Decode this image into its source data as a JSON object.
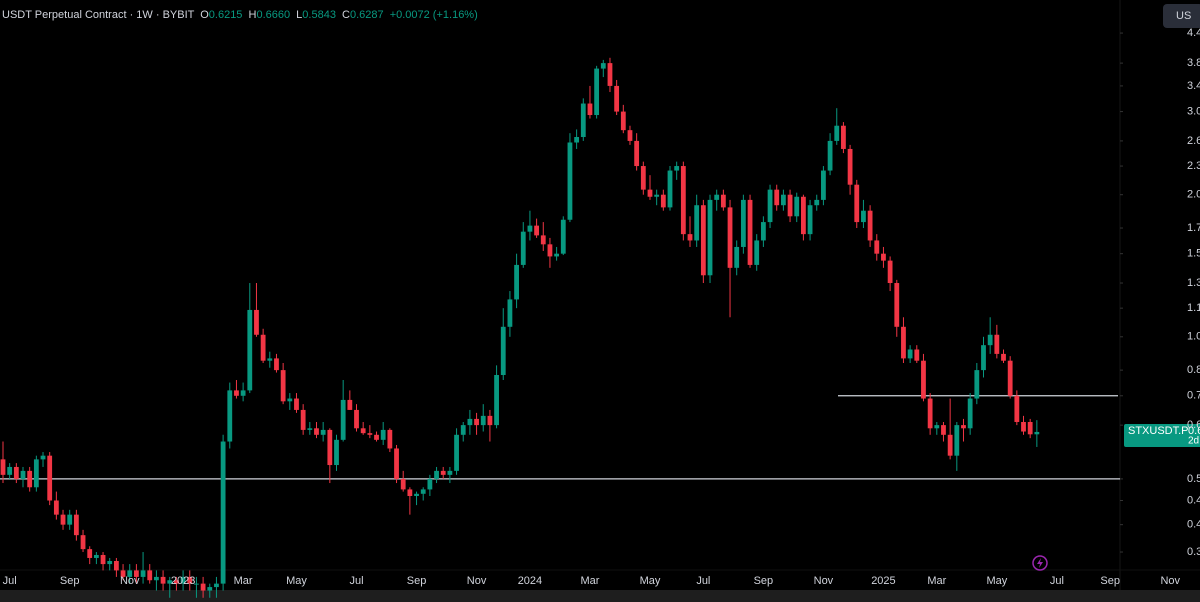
{
  "header": {
    "title": "USDT Perpetual Contract · 1W · BYBIT",
    "o_label": "O",
    "open": "0.6215",
    "h_label": "H",
    "high": "0.6660",
    "l_label": "L",
    "low": "0.5843",
    "c_label": "C",
    "close": "0.6287",
    "change": "+0.0072 (+1.16%)"
  },
  "ui": {
    "corner": "US",
    "price_tag": {
      "symbol": "STXUSDT.P",
      "price": "0.6",
      "countdown": "2d"
    }
  },
  "chart_data": {
    "type": "candlestick",
    "log_scale": true,
    "grid": false,
    "up_color": "#089981",
    "down_color": "#f23645",
    "level_color": "#d1d4dc",
    "ylim": [
      0.298,
      5.17
    ],
    "yticks": [
      4.4,
      3.8,
      3.4,
      {
        "value": 3,
        "label": "3.0"
      },
      2.6,
      2.3,
      {
        "value": 2,
        "label": "2.0"
      },
      1.7,
      1.5,
      1.3,
      {
        "value": 1.15,
        "label": "1.1"
      },
      {
        "value": 1,
        "label": "1.0"
      },
      {
        "value": 0.85,
        "label": "0.8"
      },
      {
        "value": 0.75,
        "label": "0.7"
      },
      {
        "value": 0.65,
        "label": "0.6"
      },
      0.5,
      {
        "value": 0.45,
        "label": "0.4"
      },
      0.4,
      {
        "value": 0.35,
        "label": "0.3"
      }
    ],
    "levels": [
      0.5,
      0.75
    ],
    "categories": [
      null,
      "Jul",
      null,
      null,
      null,
      null,
      null,
      null,
      null,
      null,
      "Sep",
      null,
      null,
      null,
      null,
      null,
      null,
      null,
      null,
      "Nov",
      null,
      null,
      null,
      null,
      null,
      null,
      null,
      "2023",
      null,
      null,
      null,
      null,
      null,
      null,
      null,
      null,
      "Mar",
      null,
      null,
      null,
      null,
      null,
      null,
      null,
      "May",
      null,
      null,
      null,
      null,
      null,
      null,
      null,
      null,
      "Jul",
      null,
      null,
      null,
      null,
      null,
      null,
      null,
      null,
      "Sep",
      null,
      null,
      null,
      null,
      null,
      null,
      null,
      null,
      "Nov",
      null,
      null,
      null,
      null,
      null,
      null,
      null,
      "2024",
      null,
      null,
      null,
      null,
      null,
      null,
      null,
      null,
      "Mar",
      null,
      null,
      null,
      null,
      null,
      null,
      null,
      null,
      "May",
      null,
      null,
      null,
      null,
      null,
      null,
      null,
      "Jul",
      null,
      null,
      null,
      null,
      null,
      null,
      null,
      null,
      "Sep",
      null,
      null,
      null,
      null,
      null,
      null,
      null,
      null,
      "Nov",
      null,
      null,
      null,
      null,
      null,
      null,
      null,
      null,
      "2025",
      null,
      null,
      null,
      null,
      null,
      null,
      null,
      "Mar",
      null,
      null,
      null,
      null,
      null,
      null,
      null,
      null,
      "May",
      null,
      null,
      null,
      null,
      null,
      null,
      null,
      null,
      "Jul",
      null,
      null,
      null,
      null,
      null,
      null,
      null,
      "Sep",
      null,
      null,
      null,
      null,
      null,
      null,
      null,
      null,
      "Nov"
    ],
    "ohlc": [
      [
        0.55,
        0.6,
        0.49,
        0.51
      ],
      [
        0.51,
        0.54,
        0.5,
        0.53
      ],
      [
        0.53,
        0.54,
        0.49,
        0.5
      ],
      [
        0.5,
        0.53,
        0.48,
        0.52
      ],
      [
        0.52,
        0.53,
        0.47,
        0.48
      ],
      [
        0.48,
        0.56,
        0.47,
        0.55
      ],
      [
        0.55,
        0.57,
        0.53,
        0.56
      ],
      [
        0.56,
        0.57,
        0.44,
        0.45
      ],
      [
        0.45,
        0.47,
        0.41,
        0.42
      ],
      [
        0.42,
        0.43,
        0.39,
        0.4
      ],
      [
        0.4,
        0.43,
        0.39,
        0.42
      ],
      [
        0.42,
        0.43,
        0.37,
        0.38
      ],
      [
        0.38,
        0.39,
        0.35,
        0.355
      ],
      [
        0.355,
        0.36,
        0.33,
        0.34
      ],
      [
        0.34,
        0.35,
        0.33,
        0.345
      ],
      [
        0.345,
        0.35,
        0.32,
        0.33
      ],
      [
        0.33,
        0.34,
        0.32,
        0.335
      ],
      [
        0.335,
        0.34,
        0.31,
        0.32
      ],
      [
        0.32,
        0.33,
        0.305,
        0.31
      ],
      [
        0.31,
        0.33,
        0.3,
        0.32
      ],
      [
        0.32,
        0.33,
        0.3,
        0.31
      ],
      [
        0.31,
        0.35,
        0.3,
        0.32
      ],
      [
        0.32,
        0.33,
        0.3,
        0.305
      ],
      [
        0.305,
        0.32,
        0.29,
        0.31
      ],
      [
        0.31,
        0.32,
        0.29,
        0.3
      ],
      [
        0.3,
        0.31,
        0.28,
        0.305
      ],
      [
        0.305,
        0.31,
        0.29,
        0.3
      ],
      [
        0.3,
        0.32,
        0.29,
        0.31
      ],
      [
        0.31,
        0.32,
        0.29,
        0.3
      ],
      [
        0.3,
        0.31,
        0.28,
        0.3
      ],
      [
        0.3,
        0.31,
        0.28,
        0.29
      ],
      [
        0.29,
        0.3,
        0.28,
        0.295
      ],
      [
        0.295,
        0.31,
        0.28,
        0.3
      ],
      [
        0.3,
        0.62,
        0.29,
        0.6
      ],
      [
        0.6,
        0.8,
        0.58,
        0.77
      ],
      [
        0.77,
        0.81,
        0.74,
        0.75
      ],
      [
        0.75,
        0.8,
        0.73,
        0.77
      ],
      [
        0.77,
        1.3,
        0.76,
        1.14
      ],
      [
        1.14,
        1.3,
        1.0,
        1.01
      ],
      [
        1.01,
        1.04,
        0.88,
        0.89
      ],
      [
        0.89,
        0.93,
        0.86,
        0.9
      ],
      [
        0.9,
        0.92,
        0.84,
        0.85
      ],
      [
        0.85,
        0.88,
        0.72,
        0.73
      ],
      [
        0.73,
        0.76,
        0.7,
        0.74
      ],
      [
        0.74,
        0.76,
        0.69,
        0.7
      ],
      [
        0.7,
        0.72,
        0.62,
        0.635
      ],
      [
        0.635,
        0.66,
        0.62,
        0.64
      ],
      [
        0.64,
        0.66,
        0.61,
        0.62
      ],
      [
        0.62,
        0.66,
        0.6,
        0.635
      ],
      [
        0.635,
        0.64,
        0.49,
        0.535
      ],
      [
        0.535,
        0.62,
        0.52,
        0.605
      ],
      [
        0.605,
        0.81,
        0.6,
        0.735
      ],
      [
        0.735,
        0.77,
        0.7,
        0.7
      ],
      [
        0.7,
        0.72,
        0.63,
        0.64
      ],
      [
        0.64,
        0.66,
        0.62,
        0.625
      ],
      [
        0.625,
        0.65,
        0.61,
        0.62
      ],
      [
        0.62,
        0.63,
        0.6,
        0.605
      ],
      [
        0.605,
        0.66,
        0.59,
        0.635
      ],
      [
        0.635,
        0.64,
        0.57,
        0.58
      ],
      [
        0.58,
        0.59,
        0.49,
        0.5
      ],
      [
        0.5,
        0.52,
        0.47,
        0.475
      ],
      [
        0.475,
        0.48,
        0.42,
        0.46
      ],
      [
        0.46,
        0.47,
        0.44,
        0.465
      ],
      [
        0.465,
        0.48,
        0.45,
        0.475
      ],
      [
        0.475,
        0.51,
        0.46,
        0.5
      ],
      [
        0.5,
        0.53,
        0.49,
        0.52
      ],
      [
        0.52,
        0.53,
        0.5,
        0.51
      ],
      [
        0.51,
        0.53,
        0.49,
        0.52
      ],
      [
        0.52,
        0.64,
        0.51,
        0.62
      ],
      [
        0.62,
        0.66,
        0.6,
        0.65
      ],
      [
        0.65,
        0.7,
        0.62,
        0.67
      ],
      [
        0.67,
        0.69,
        0.62,
        0.65
      ],
      [
        0.65,
        0.72,
        0.63,
        0.68
      ],
      [
        0.68,
        0.7,
        0.6,
        0.65
      ],
      [
        0.65,
        0.87,
        0.64,
        0.83
      ],
      [
        0.83,
        1.15,
        0.81,
        1.05
      ],
      [
        1.05,
        1.25,
        1.0,
        1.2
      ],
      [
        1.2,
        1.5,
        1.15,
        1.42
      ],
      [
        1.42,
        1.75,
        1.4,
        1.67
      ],
      [
        1.67,
        1.85,
        1.6,
        1.72
      ],
      [
        1.72,
        1.78,
        1.62,
        1.64
      ],
      [
        1.64,
        1.75,
        1.52,
        1.57
      ],
      [
        1.57,
        1.62,
        1.4,
        1.48
      ],
      [
        1.48,
        1.55,
        1.45,
        1.5
      ],
      [
        1.5,
        1.8,
        1.49,
        1.77
      ],
      [
        1.77,
        2.7,
        1.75,
        2.58
      ],
      [
        2.58,
        2.75,
        2.5,
        2.65
      ],
      [
        2.65,
        3.2,
        2.6,
        3.12
      ],
      [
        3.12,
        3.4,
        2.9,
        2.95
      ],
      [
        2.95,
        3.75,
        2.9,
        3.7
      ],
      [
        3.7,
        3.86,
        3.55,
        3.8
      ],
      [
        3.8,
        3.9,
        3.3,
        3.4
      ],
      [
        3.4,
        3.5,
        2.95,
        3.0
      ],
      [
        3.0,
        3.1,
        2.7,
        2.74
      ],
      [
        2.74,
        2.8,
        2.55,
        2.6
      ],
      [
        2.6,
        2.7,
        2.25,
        2.3
      ],
      [
        2.3,
        2.35,
        2.0,
        2.05
      ],
      [
        2.05,
        2.2,
        1.95,
        1.98
      ],
      [
        1.98,
        2.05,
        1.9,
        2.0
      ],
      [
        2.0,
        2.05,
        1.85,
        1.88
      ],
      [
        1.88,
        2.3,
        1.85,
        2.25
      ],
      [
        2.25,
        2.35,
        2.15,
        2.3
      ],
      [
        2.3,
        2.35,
        1.6,
        1.65
      ],
      [
        1.65,
        1.8,
        1.55,
        1.6
      ],
      [
        1.6,
        2.0,
        1.55,
        1.9
      ],
      [
        1.9,
        1.95,
        1.3,
        1.35
      ],
      [
        1.35,
        2.0,
        1.3,
        1.95
      ],
      [
        1.95,
        2.05,
        1.85,
        2.0
      ],
      [
        2.0,
        2.05,
        1.85,
        1.88
      ],
      [
        1.88,
        1.95,
        1.1,
        1.4
      ],
      [
        1.4,
        1.6,
        1.35,
        1.55
      ],
      [
        1.55,
        2.0,
        1.5,
        1.95
      ],
      [
        1.95,
        2.0,
        1.4,
        1.42
      ],
      [
        1.42,
        1.65,
        1.38,
        1.6
      ],
      [
        1.6,
        1.8,
        1.55,
        1.75
      ],
      [
        1.75,
        2.1,
        1.7,
        2.05
      ],
      [
        2.05,
        2.1,
        1.85,
        1.9
      ],
      [
        1.9,
        2.05,
        1.85,
        2.0
      ],
      [
        2.0,
        2.05,
        1.75,
        1.8
      ],
      [
        1.8,
        2.02,
        1.75,
        1.98
      ],
      [
        1.98,
        2.0,
        1.6,
        1.65
      ],
      [
        1.65,
        1.95,
        1.6,
        1.9
      ],
      [
        1.9,
        2.0,
        1.85,
        1.95
      ],
      [
        1.95,
        2.3,
        1.9,
        2.25
      ],
      [
        2.25,
        2.7,
        2.2,
        2.6
      ],
      [
        2.6,
        3.05,
        2.55,
        2.8
      ],
      [
        2.8,
        2.85,
        2.45,
        2.5
      ],
      [
        2.5,
        2.55,
        2.0,
        2.1
      ],
      [
        2.1,
        2.15,
        1.7,
        1.75
      ],
      [
        1.75,
        1.95,
        1.7,
        1.85
      ],
      [
        1.85,
        1.9,
        1.55,
        1.6
      ],
      [
        1.6,
        1.65,
        1.45,
        1.5
      ],
      [
        1.5,
        1.55,
        1.4,
        1.45
      ],
      [
        1.45,
        1.48,
        1.25,
        1.3
      ],
      [
        1.3,
        1.32,
        1.0,
        1.05
      ],
      [
        1.05,
        1.1,
        0.88,
        0.9
      ],
      [
        0.9,
        0.96,
        0.88,
        0.94
      ],
      [
        0.94,
        0.96,
        0.88,
        0.89
      ],
      [
        0.89,
        0.92,
        0.73,
        0.74
      ],
      [
        0.74,
        0.76,
        0.62,
        0.64
      ],
      [
        0.64,
        0.66,
        0.62,
        0.65
      ],
      [
        0.65,
        0.66,
        0.6,
        0.62
      ],
      [
        0.62,
        0.74,
        0.55,
        0.56
      ],
      [
        0.56,
        0.66,
        0.52,
        0.65
      ],
      [
        0.65,
        0.67,
        0.6,
        0.64
      ],
      [
        0.64,
        0.76,
        0.62,
        0.74
      ],
      [
        0.74,
        0.88,
        0.72,
        0.85
      ],
      [
        0.85,
        1.0,
        0.82,
        0.96
      ],
      [
        0.96,
        1.1,
        0.92,
        1.01
      ],
      [
        1.01,
        1.06,
        0.9,
        0.92
      ],
      [
        0.92,
        0.94,
        0.88,
        0.89
      ],
      [
        0.89,
        0.91,
        0.74,
        0.75
      ],
      [
        0.75,
        0.77,
        0.65,
        0.66
      ],
      [
        0.66,
        0.68,
        0.62,
        0.63
      ],
      [
        0.66,
        0.67,
        0.61,
        0.6215
      ],
      [
        0.6215,
        0.666,
        0.5843,
        0.6287
      ],
      null,
      null,
      null,
      null,
      null,
      null,
      null,
      null,
      null,
      null,
      null,
      null,
      null,
      null,
      null,
      null,
      null,
      null,
      null,
      null
    ]
  }
}
